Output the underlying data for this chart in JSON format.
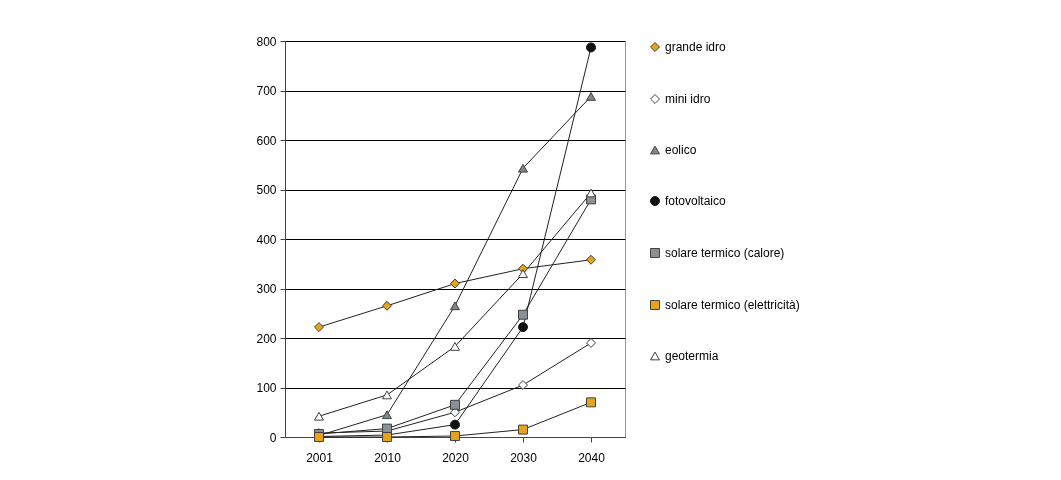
{
  "chart_data": {
    "type": "line",
    "categories": [
      "2001",
      "2010",
      "2020",
      "2030",
      "2040"
    ],
    "ylim": [
      0,
      800
    ],
    "yticks": [
      0,
      100,
      200,
      300,
      400,
      500,
      600,
      700,
      800
    ],
    "grid": "y",
    "legend": "right",
    "series": [
      {
        "name": "grande idro",
        "color": "#e8a317",
        "marker": "diamond",
        "values": [
          222,
          265,
          310,
          340,
          358
        ]
      },
      {
        "name": "mini idro",
        "color": "#ffffff",
        "marker": "diamond",
        "values": [
          8,
          12,
          50,
          105,
          190
        ]
      },
      {
        "name": "eolico",
        "color": "#7f878f",
        "marker": "triangle",
        "values": [
          3,
          45,
          265,
          543,
          688
        ]
      },
      {
        "name": "fotovoltaico",
        "color": "#111111",
        "marker": "circle",
        "values": [
          1,
          4,
          25,
          222,
          787
        ]
      },
      {
        "name": "solare termico (calore)",
        "color": "#8a9096",
        "marker": "square",
        "values": [
          6,
          17,
          65,
          247,
          480
        ]
      },
      {
        "name": "solare termico (elettricità)",
        "color": "#e8a317",
        "marker": "square",
        "values": [
          0,
          0,
          2,
          15,
          70
        ]
      },
      {
        "name": "geotermia",
        "color": "#ffffff",
        "marker": "triangle",
        "values": [
          42,
          85,
          183,
          330,
          493
        ]
      }
    ]
  }
}
